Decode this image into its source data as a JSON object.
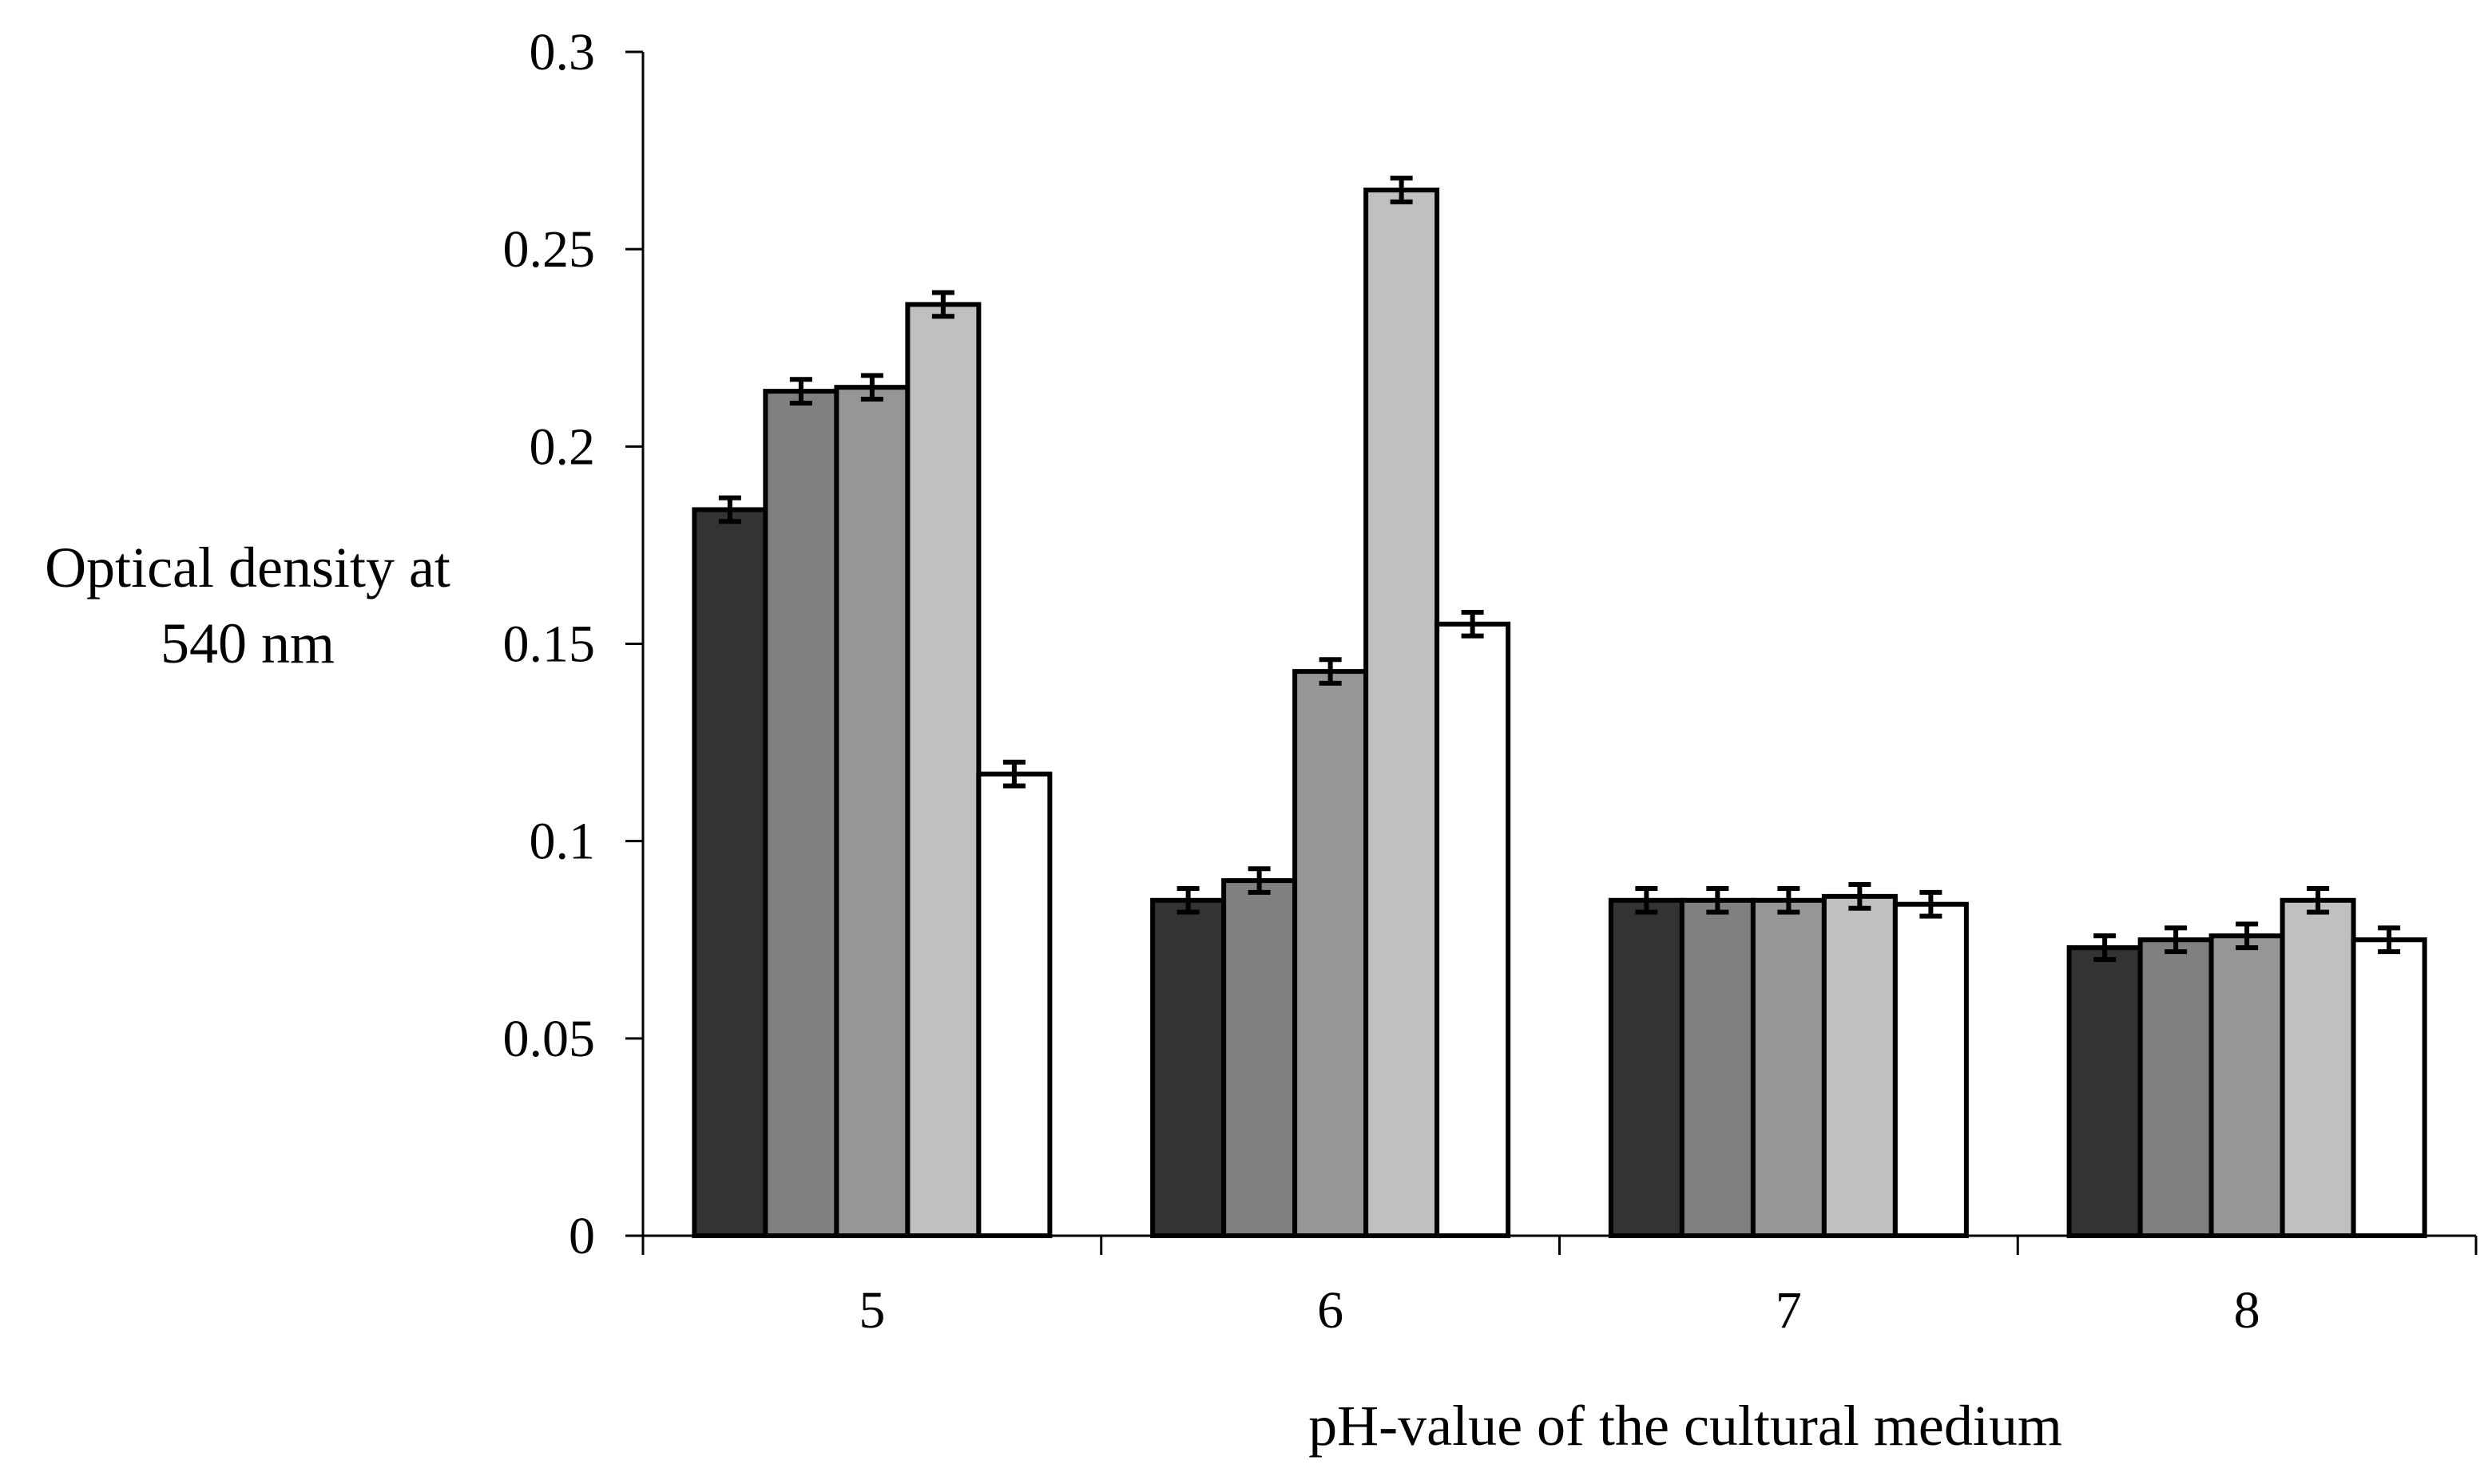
{
  "chart_data": {
    "type": "bar",
    "title": "",
    "xlabel": "pH-value of the cultural medium",
    "ylabel_lines": [
      "Optical density at",
      "540 nm"
    ],
    "categories": [
      "5",
      "6",
      "7",
      "8"
    ],
    "ylim": [
      0,
      0.3
    ],
    "yticks": [
      "0",
      "0.05",
      "0.1",
      "0.15",
      "0.2",
      "0.25",
      "0.3"
    ],
    "ytick_values": [
      0,
      0.05,
      0.1,
      0.15,
      0.2,
      0.25,
      0.3
    ],
    "grid": false,
    "legend": "none",
    "error_bar": 0.003,
    "series": [
      {
        "color": "#333333",
        "values": [
          0.184,
          0.085,
          0.085,
          0.073
        ]
      },
      {
        "color": "#808080",
        "values": [
          0.214,
          0.09,
          0.085,
          0.075
        ]
      },
      {
        "color": "#969696",
        "values": [
          0.215,
          0.143,
          0.085,
          0.076
        ]
      },
      {
        "color": "#c0c0c0",
        "values": [
          0.236,
          0.265,
          0.086,
          0.085
        ]
      },
      {
        "color": "#ffffff",
        "values": [
          0.117,
          0.155,
          0.084,
          0.075
        ]
      }
    ]
  }
}
